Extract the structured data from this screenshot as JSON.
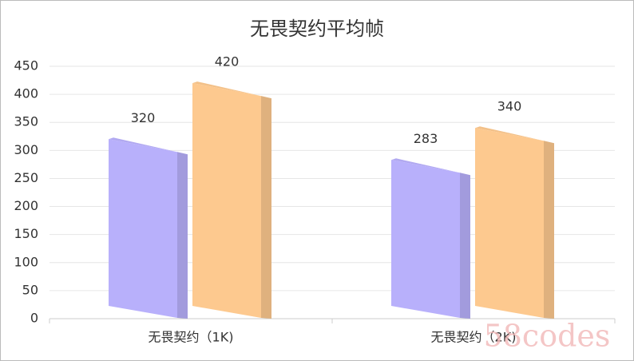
{
  "chart_data": {
    "type": "bar",
    "title": "无畏契约平均帧",
    "categories": [
      "无畏契约（1K)",
      "无畏契约（2K)"
    ],
    "series": [
      {
        "color": "#b8b0fb",
        "values": [
          320,
          283
        ]
      },
      {
        "color": "#fdc98f",
        "values": [
          420,
          340
        ]
      }
    ],
    "ylim": [
      0,
      450
    ],
    "yticks": [
      0,
      50,
      100,
      150,
      200,
      250,
      300,
      350,
      400,
      450
    ],
    "grid": true,
    "watermark": "58codes"
  }
}
